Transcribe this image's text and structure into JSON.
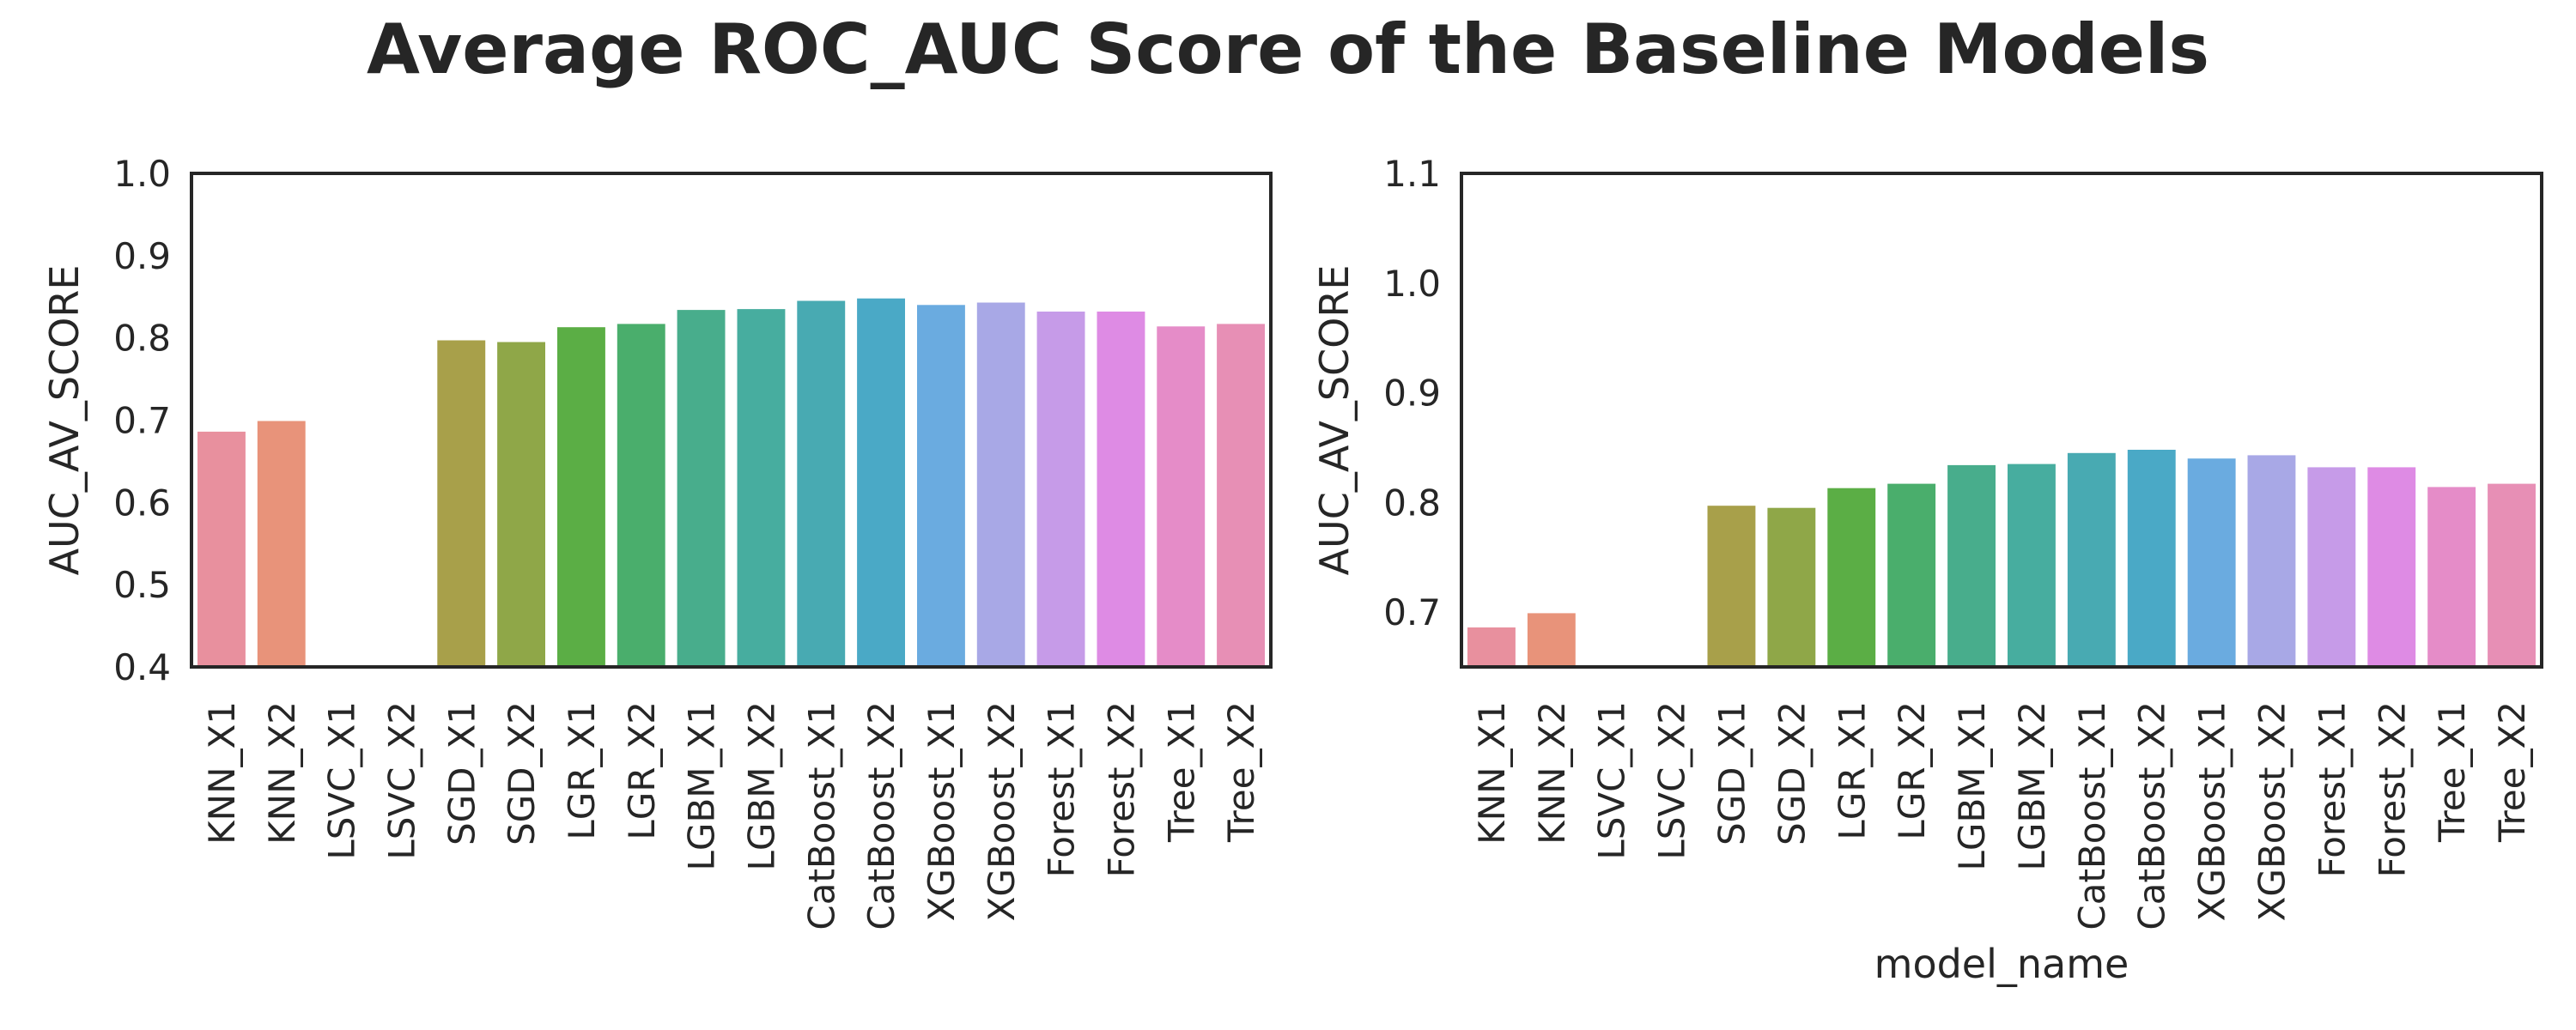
{
  "figure_title": "Average ROC_AUC Score of the Baseline Models",
  "chart_data": [
    {
      "type": "bar",
      "title": "",
      "xlabel": "",
      "ylabel": "AUC_AV_SCORE",
      "ylim": [
        0.4,
        1.0
      ],
      "yticks": [
        "0.4",
        "0.5",
        "0.6",
        "0.7",
        "0.8",
        "0.9",
        "1.0"
      ],
      "categories": [
        "KNN_X1",
        "KNN_X2",
        "LSVC_X1",
        "LSVC_X2",
        "SGD_X1",
        "SGD_X2",
        "LGR_X1",
        "LGR_X2",
        "LGBM_X1",
        "LGBM_X2",
        "CatBoost_X1",
        "CatBoost_X2",
        "XGBoost_X1",
        "XGBoost_X2",
        "Forest_X1",
        "Forest_X2",
        "Tree_X1",
        "Tree_X2"
      ],
      "values": [
        0.686,
        0.699,
        null,
        null,
        0.797,
        0.795,
        0.813,
        0.817,
        0.834,
        0.835,
        0.845,
        0.848,
        0.84,
        0.843,
        0.832,
        0.832,
        0.814,
        0.817
      ],
      "colors": [
        "#e8909e",
        "#e8937a",
        "#dc9a5e",
        "#c9a24c",
        "#a8a04a",
        "#8fa748",
        "#5bae45",
        "#4aae6c",
        "#48ad8c",
        "#47ad9f",
        "#48aab2",
        "#4aa9c6",
        "#6aabe0",
        "#a8a8e6",
        "#c69be8",
        "#de8be4",
        "#e58cc8",
        "#e78fb5"
      ],
      "grid": false
    },
    {
      "type": "bar",
      "title": "",
      "xlabel": "model_name",
      "ylabel": "AUC_AV_SCORE",
      "ylim": [
        0.65,
        1.1
      ],
      "yticks": [
        "0.7",
        "0.8",
        "0.9",
        "1.0",
        "1.1"
      ],
      "categories": [
        "KNN_X1",
        "KNN_X2",
        "LSVC_X1",
        "LSVC_X2",
        "SGD_X1",
        "SGD_X2",
        "LGR_X1",
        "LGR_X2",
        "LGBM_X1",
        "LGBM_X2",
        "CatBoost_X1",
        "CatBoost_X2",
        "XGBoost_X1",
        "XGBoost_X2",
        "Forest_X1",
        "Forest_X2",
        "Tree_X1",
        "Tree_X2"
      ],
      "values": [
        0.686,
        0.699,
        null,
        null,
        0.797,
        0.795,
        0.813,
        0.817,
        0.834,
        0.835,
        0.845,
        0.848,
        0.84,
        0.843,
        0.832,
        0.832,
        0.814,
        0.817
      ],
      "colors": [
        "#e8909e",
        "#e8937a",
        "#dc9a5e",
        "#c9a24c",
        "#a8a04a",
        "#8fa748",
        "#5bae45",
        "#4aae6c",
        "#48ad8c",
        "#47ad9f",
        "#48aab2",
        "#4aa9c6",
        "#6aabe0",
        "#a8a8e6",
        "#c69be8",
        "#de8be4",
        "#e58cc8",
        "#e78fb5"
      ],
      "grid": false
    }
  ]
}
